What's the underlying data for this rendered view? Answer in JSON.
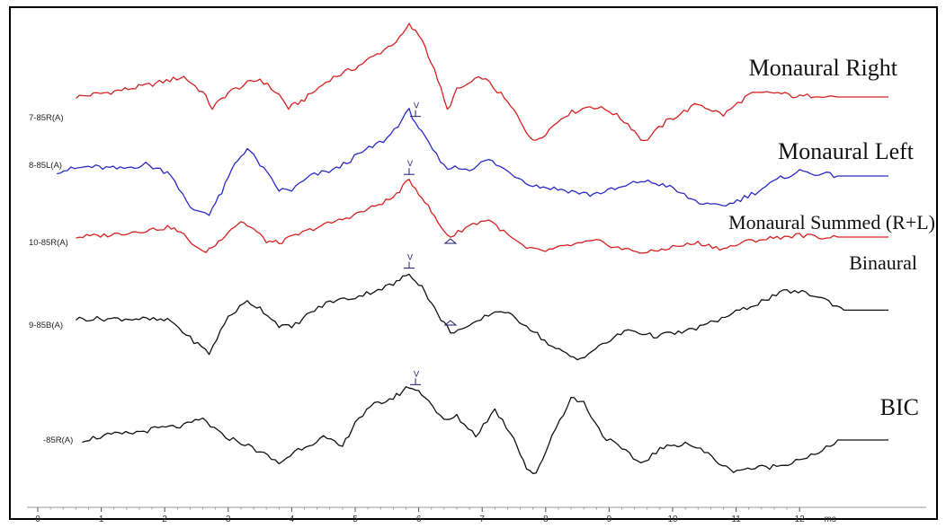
{
  "chart_data": {
    "type": "line",
    "xunit": "ms",
    "xlim": [
      0,
      12.7
    ],
    "xticks": [
      "0",
      "1",
      "2",
      "3",
      "4",
      "5",
      "6",
      "7",
      "8",
      "9",
      "10",
      "11",
      "12"
    ],
    "series": [
      {
        "name": "Monaural Right",
        "trace_label": "7-85R(A)",
        "color": "#d62020",
        "wave": [
          [
            0.6,
            0.0
          ],
          [
            1.1,
            0.2
          ],
          [
            1.7,
            0.5
          ],
          [
            2.3,
            0.9
          ],
          [
            2.6,
            0.2
          ],
          [
            2.75,
            -0.5
          ],
          [
            3.0,
            0.2
          ],
          [
            3.3,
            0.6
          ],
          [
            3.5,
            0.8
          ],
          [
            3.8,
            0.1
          ],
          [
            3.95,
            -0.5
          ],
          [
            4.2,
            -0.1
          ],
          [
            4.6,
            0.8
          ],
          [
            5.0,
            1.3
          ],
          [
            5.4,
            2.0
          ],
          [
            5.7,
            2.6
          ],
          [
            5.85,
            3.2
          ],
          [
            6.05,
            2.6
          ],
          [
            6.3,
            0.8
          ],
          [
            6.45,
            -0.6
          ],
          [
            6.6,
            0.3
          ],
          [
            7.0,
            0.9
          ],
          [
            7.3,
            0.1
          ],
          [
            7.55,
            -0.8
          ],
          [
            7.8,
            -2.0
          ],
          [
            8.0,
            -1.6
          ],
          [
            8.3,
            -0.8
          ],
          [
            8.7,
            -0.4
          ],
          [
            9.0,
            -0.6
          ],
          [
            9.3,
            -1.2
          ],
          [
            9.55,
            -2.0
          ],
          [
            9.9,
            -1.1
          ],
          [
            10.4,
            -0.3
          ],
          [
            10.8,
            -0.8
          ],
          [
            11.2,
            0.1
          ],
          [
            11.6,
            0.2
          ],
          [
            12.0,
            0.0
          ],
          [
            12.3,
            0.1
          ],
          [
            12.6,
            0.0
          ]
        ],
        "tail_to": 13.4
      },
      {
        "name": "Monaural Left",
        "trace_label": "8-85L(A)",
        "color": "#2a2ac8",
        "wave": [
          [
            0.3,
            0.2
          ],
          [
            0.8,
            0.4
          ],
          [
            1.3,
            0.3
          ],
          [
            1.7,
            0.5
          ],
          [
            2.1,
            0.1
          ],
          [
            2.4,
            -1.4
          ],
          [
            2.7,
            -1.6
          ],
          [
            2.9,
            -0.7
          ],
          [
            3.1,
            0.5
          ],
          [
            3.3,
            1.2
          ],
          [
            3.5,
            0.5
          ],
          [
            3.8,
            -0.6
          ],
          [
            4.0,
            -0.6
          ],
          [
            4.3,
            0.0
          ],
          [
            4.7,
            0.3
          ],
          [
            5.1,
            1.0
          ],
          [
            5.5,
            1.6
          ],
          [
            5.85,
            2.8
          ],
          [
            6.1,
            1.6
          ],
          [
            6.4,
            0.4
          ],
          [
            6.8,
            0.3
          ],
          [
            7.1,
            0.7
          ],
          [
            7.4,
            0.2
          ],
          [
            7.8,
            -0.4
          ],
          [
            8.3,
            -0.6
          ],
          [
            8.7,
            -0.8
          ],
          [
            9.2,
            -0.5
          ],
          [
            9.5,
            -0.2
          ],
          [
            9.9,
            -0.4
          ],
          [
            10.3,
            -1.0
          ],
          [
            10.6,
            -1.3
          ],
          [
            10.9,
            -1.2
          ],
          [
            11.3,
            -0.7
          ],
          [
            11.7,
            -0.1
          ],
          [
            12.0,
            0.2
          ],
          [
            12.3,
            0.1
          ],
          [
            12.6,
            0.0
          ]
        ],
        "tail_to": 13.4,
        "markers": [
          {
            "x": 5.95,
            "label": "V"
          }
        ]
      },
      {
        "name": "Monaural Summed (R+L)",
        "trace_label": "10-85R(A)",
        "color": "#d62020",
        "wave": [
          [
            0.6,
            0.0
          ],
          [
            1.1,
            0.1
          ],
          [
            1.6,
            0.3
          ],
          [
            2.1,
            0.5
          ],
          [
            2.3,
            0.1
          ],
          [
            2.6,
            -0.8
          ],
          [
            2.8,
            -0.4
          ],
          [
            3.0,
            0.3
          ],
          [
            3.2,
            0.8
          ],
          [
            3.4,
            0.4
          ],
          [
            3.6,
            -0.2
          ],
          [
            3.8,
            -0.3
          ],
          [
            4.0,
            0.0
          ],
          [
            4.4,
            0.5
          ],
          [
            4.8,
            0.9
          ],
          [
            5.2,
            1.4
          ],
          [
            5.6,
            2.0
          ],
          [
            5.85,
            2.9
          ],
          [
            6.1,
            1.8
          ],
          [
            6.35,
            0.5
          ],
          [
            6.5,
            0.0
          ],
          [
            6.8,
            0.6
          ],
          [
            7.1,
            0.9
          ],
          [
            7.4,
            0.1
          ],
          [
            7.7,
            -0.6
          ],
          [
            8.0,
            -0.7
          ],
          [
            8.4,
            -0.4
          ],
          [
            8.8,
            -0.2
          ],
          [
            9.2,
            -0.6
          ],
          [
            9.6,
            -0.8
          ],
          [
            10.0,
            -0.5
          ],
          [
            10.4,
            -0.3
          ],
          [
            10.8,
            -0.6
          ],
          [
            11.2,
            -0.2
          ],
          [
            11.7,
            0.0
          ],
          [
            12.0,
            0.1
          ],
          [
            12.3,
            0.0
          ],
          [
            12.6,
            0.0
          ]
        ],
        "tail_to": 13.4,
        "markers": [
          {
            "x": 5.85,
            "label": "V"
          }
        ],
        "troughs": [
          6.5
        ]
      },
      {
        "name": "Binaural",
        "trace_label": "9-85B(A)",
        "color": "#111111",
        "wave": [
          [
            0.6,
            0.0
          ],
          [
            1.1,
            0.0
          ],
          [
            1.6,
            0.0
          ],
          [
            2.1,
            -0.1
          ],
          [
            2.4,
            -0.9
          ],
          [
            2.7,
            -1.6
          ],
          [
            3.0,
            0.1
          ],
          [
            3.3,
            0.8
          ],
          [
            3.5,
            0.5
          ],
          [
            3.8,
            -0.3
          ],
          [
            4.0,
            -0.4
          ],
          [
            4.3,
            0.3
          ],
          [
            4.6,
            0.8
          ],
          [
            5.0,
            1.0
          ],
          [
            5.3,
            1.3
          ],
          [
            5.6,
            1.6
          ],
          [
            5.85,
            2.1
          ],
          [
            6.05,
            1.5
          ],
          [
            6.3,
            0.2
          ],
          [
            6.5,
            -0.6
          ],
          [
            6.8,
            -0.4
          ],
          [
            7.1,
            0.2
          ],
          [
            7.3,
            0.4
          ],
          [
            7.7,
            -0.3
          ],
          [
            8.1,
            -1.3
          ],
          [
            8.5,
            -1.9
          ],
          [
            8.9,
            -1.2
          ],
          [
            9.3,
            -0.5
          ],
          [
            9.7,
            -0.8
          ],
          [
            10.2,
            -0.6
          ],
          [
            10.6,
            -0.2
          ],
          [
            11.0,
            0.3
          ],
          [
            11.4,
            0.8
          ],
          [
            11.8,
            1.3
          ],
          [
            12.1,
            1.2
          ],
          [
            12.4,
            0.9
          ],
          [
            12.7,
            0.4
          ]
        ],
        "tail_to": 13.4,
        "markers": [
          {
            "x": 5.85,
            "label": "V"
          }
        ],
        "troughs": [
          6.5
        ]
      },
      {
        "name": "BIC",
        "trace_label": "-85R(A)",
        "color": "#111111",
        "wave": [
          [
            0.7,
            0.0
          ],
          [
            1.1,
            0.2
          ],
          [
            1.5,
            0.3
          ],
          [
            1.9,
            0.5
          ],
          [
            2.3,
            0.6
          ],
          [
            2.6,
            0.9
          ],
          [
            2.9,
            0.2
          ],
          [
            3.2,
            -0.1
          ],
          [
            3.5,
            -0.5
          ],
          [
            3.8,
            -1.0
          ],
          [
            4.1,
            -0.4
          ],
          [
            4.5,
            0.1
          ],
          [
            4.8,
            -0.3
          ],
          [
            5.0,
            0.8
          ],
          [
            5.3,
            1.5
          ],
          [
            5.6,
            1.8
          ],
          [
            5.85,
            2.3
          ],
          [
            6.1,
            1.9
          ],
          [
            6.4,
            0.8
          ],
          [
            6.6,
            1.0
          ],
          [
            6.9,
            0.2
          ],
          [
            7.2,
            1.3
          ],
          [
            7.5,
            0.1
          ],
          [
            7.7,
            -1.2
          ],
          [
            7.85,
            -1.5
          ],
          [
            8.1,
            0.2
          ],
          [
            8.4,
            1.8
          ],
          [
            8.6,
            1.6
          ],
          [
            8.9,
            0.2
          ],
          [
            9.2,
            -0.4
          ],
          [
            9.5,
            -1.0
          ],
          [
            9.8,
            -0.4
          ],
          [
            10.2,
            -0.1
          ],
          [
            10.5,
            -0.5
          ],
          [
            10.9,
            -1.3
          ],
          [
            11.3,
            -1.2
          ],
          [
            11.7,
            -1.1
          ],
          [
            12.0,
            -0.8
          ],
          [
            12.3,
            -0.6
          ],
          [
            12.6,
            0.0
          ]
        ],
        "tail_to": 13.4,
        "markers": [
          {
            "x": 5.95,
            "label": "V"
          }
        ]
      }
    ]
  }
}
